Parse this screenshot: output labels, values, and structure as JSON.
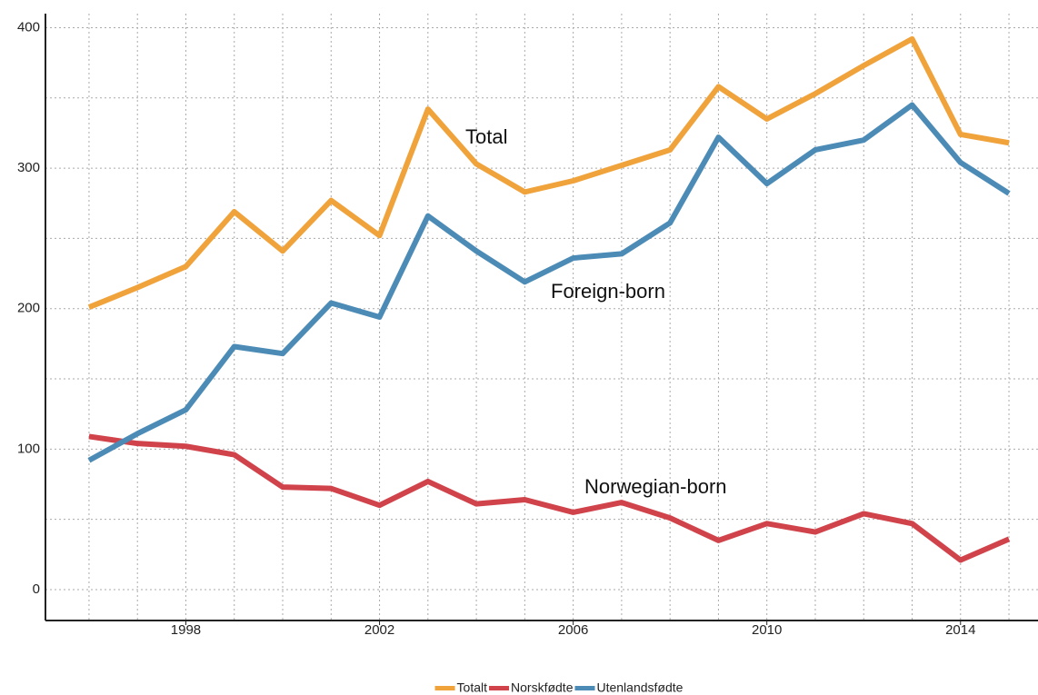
{
  "chart_data": {
    "type": "line",
    "x": [
      1996,
      1997,
      1998,
      1999,
      2000,
      2001,
      2002,
      2003,
      2004,
      2005,
      2006,
      2007,
      2008,
      2009,
      2010,
      2011,
      2012,
      2013,
      2014,
      2015
    ],
    "series": [
      {
        "name": "Totalt",
        "color": "#f0a23b",
        "values": [
          201,
          215,
          230,
          269,
          241,
          277,
          252,
          342,
          303,
          283,
          291,
          302,
          313,
          358,
          335,
          353,
          373,
          392,
          324,
          318
        ]
      },
      {
        "name": "Norskfødte",
        "color": "#d1434b",
        "values": [
          109,
          104,
          102,
          96,
          73,
          72,
          60,
          77,
          61,
          64,
          55,
          62,
          51,
          35,
          47,
          41,
          54,
          47,
          21,
          36
        ]
      },
      {
        "name": "Utenlandsfødte",
        "color": "#4b8bb6",
        "values": [
          92,
          111,
          128,
          173,
          168,
          204,
          194,
          266,
          241,
          219,
          236,
          239,
          261,
          322,
          289,
          313,
          320,
          345,
          304,
          282
        ]
      }
    ],
    "annotations": [
      "Total",
      "Norwegian-born",
      "Foreign-born"
    ],
    "xlim": [
      1995.1,
      2015.6
    ],
    "xticks": [
      1998,
      2002,
      2006,
      2010,
      2014
    ],
    "ylim": [
      -22,
      410
    ],
    "yticks": [
      0,
      100,
      200,
      300,
      400
    ],
    "xgrid": [
      1996,
      1997,
      1998,
      1999,
      2000,
      2001,
      2002,
      2003,
      2004,
      2005,
      2006,
      2007,
      2008,
      2009,
      2010,
      2011,
      2012,
      2013,
      2014,
      2015
    ],
    "ygrid": [
      0,
      50,
      100,
      150,
      200,
      250,
      300,
      350,
      400
    ],
    "legend": "bottom"
  }
}
